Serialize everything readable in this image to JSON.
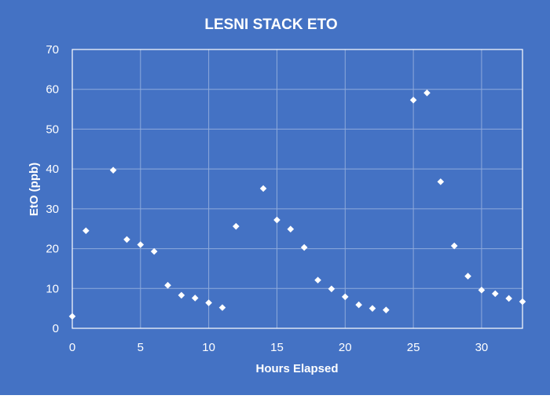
{
  "chart_data": {
    "type": "scatter",
    "title": "LESNI STACK ETO",
    "xlabel": "Hours Elapsed",
    "ylabel": "EtO (ppb)",
    "xlim": [
      0,
      33
    ],
    "ylim": [
      0,
      70
    ],
    "xticks": [
      0,
      5,
      10,
      15,
      20,
      25,
      30
    ],
    "yticks": [
      0,
      10,
      20,
      30,
      40,
      50,
      60,
      70
    ],
    "grid": true,
    "colors": {
      "background": "#4472c4",
      "plot_border": "#ffffff",
      "grid": "#8eaadb",
      "marker": "#ffffff",
      "text": "#ffffff"
    },
    "points": [
      {
        "x": 0,
        "y": 3.0
      },
      {
        "x": 1,
        "y": 24.5
      },
      {
        "x": 3,
        "y": 39.7
      },
      {
        "x": 4,
        "y": 22.3
      },
      {
        "x": 5,
        "y": 21.0
      },
      {
        "x": 6,
        "y": 19.3
      },
      {
        "x": 7,
        "y": 10.8
      },
      {
        "x": 8,
        "y": 8.3
      },
      {
        "x": 9,
        "y": 7.6
      },
      {
        "x": 10,
        "y": 6.4
      },
      {
        "x": 11,
        "y": 5.2
      },
      {
        "x": 12,
        "y": 25.6
      },
      {
        "x": 14,
        "y": 35.1
      },
      {
        "x": 15,
        "y": 27.2
      },
      {
        "x": 16,
        "y": 24.9
      },
      {
        "x": 17,
        "y": 20.3
      },
      {
        "x": 18,
        "y": 12.1
      },
      {
        "x": 19,
        "y": 9.9
      },
      {
        "x": 20,
        "y": 7.9
      },
      {
        "x": 21,
        "y": 5.9
      },
      {
        "x": 22,
        "y": 5.0
      },
      {
        "x": 23,
        "y": 4.6
      },
      {
        "x": 25,
        "y": 57.3
      },
      {
        "x": 26,
        "y": 59.1
      },
      {
        "x": 27,
        "y": 36.8
      },
      {
        "x": 28,
        "y": 20.7
      },
      {
        "x": 29,
        "y": 13.1
      },
      {
        "x": 30,
        "y": 9.6
      },
      {
        "x": 31,
        "y": 8.7
      },
      {
        "x": 32,
        "y": 7.5
      },
      {
        "x": 33,
        "y": 6.7
      }
    ]
  }
}
